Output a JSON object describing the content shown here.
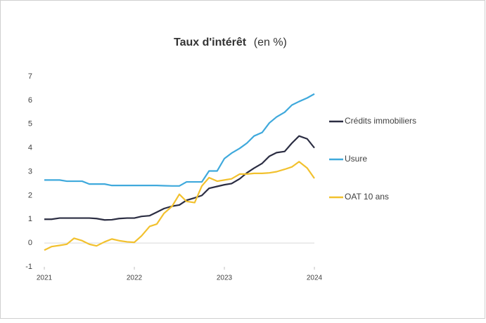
{
  "chart_data": {
    "type": "line",
    "title": "Taux d'intérêt",
    "subtitle": "(en %)",
    "x": [
      2021,
      2021.08,
      2021.17,
      2021.25,
      2021.33,
      2021.42,
      2021.5,
      2021.58,
      2021.67,
      2021.75,
      2021.83,
      2021.92,
      2022,
      2022.08,
      2022.17,
      2022.25,
      2022.33,
      2022.42,
      2022.5,
      2022.58,
      2022.67,
      2022.75,
      2022.83,
      2022.92,
      2023,
      2023.08,
      2023.17,
      2023.25,
      2023.33,
      2023.42,
      2023.5,
      2023.58,
      2023.67,
      2023.75,
      2023.83,
      2023.92,
      2024
    ],
    "xlim": [
      2021,
      2024
    ],
    "xticks": [
      2021,
      2022,
      2023,
      2024
    ],
    "ylim": [
      -1,
      7
    ],
    "yticks": [
      -1,
      0,
      1,
      2,
      3,
      4,
      5,
      6,
      7
    ],
    "series": [
      {
        "name": "Crédits immobiliers",
        "color": "#2b2d42",
        "values": [
          1.0,
          1.0,
          1.05,
          1.05,
          1.05,
          1.05,
          1.05,
          1.03,
          0.97,
          0.98,
          1.03,
          1.05,
          1.05,
          1.12,
          1.15,
          1.3,
          1.45,
          1.55,
          1.6,
          1.8,
          1.9,
          2.0,
          2.3,
          2.38,
          2.45,
          2.5,
          2.7,
          2.95,
          3.15,
          3.35,
          3.65,
          3.8,
          3.85,
          4.2,
          4.5,
          4.38,
          4.0
        ]
      },
      {
        "name": "Usure",
        "color": "#3fa9dc",
        "values": [
          2.65,
          2.65,
          2.65,
          2.6,
          2.6,
          2.6,
          2.48,
          2.48,
          2.48,
          2.42,
          2.42,
          2.42,
          2.42,
          2.42,
          2.42,
          2.42,
          2.41,
          2.4,
          2.4,
          2.57,
          2.57,
          2.57,
          3.03,
          3.03,
          3.55,
          3.78,
          3.98,
          4.2,
          4.5,
          4.65,
          5.05,
          5.3,
          5.5,
          5.8,
          5.95,
          6.1,
          6.27
        ]
      },
      {
        "name": "OAT 10 ans",
        "color": "#f2c12e",
        "values": [
          -0.3,
          -0.15,
          -0.1,
          -0.05,
          0.2,
          0.1,
          -0.05,
          -0.12,
          0.05,
          0.17,
          0.1,
          0.05,
          0.03,
          0.3,
          0.7,
          0.8,
          1.25,
          1.55,
          2.05,
          1.75,
          1.7,
          2.4,
          2.75,
          2.6,
          2.65,
          2.7,
          2.9,
          2.9,
          2.93,
          2.93,
          2.95,
          3.0,
          3.1,
          3.2,
          3.42,
          3.15,
          2.72
        ]
      }
    ]
  }
}
